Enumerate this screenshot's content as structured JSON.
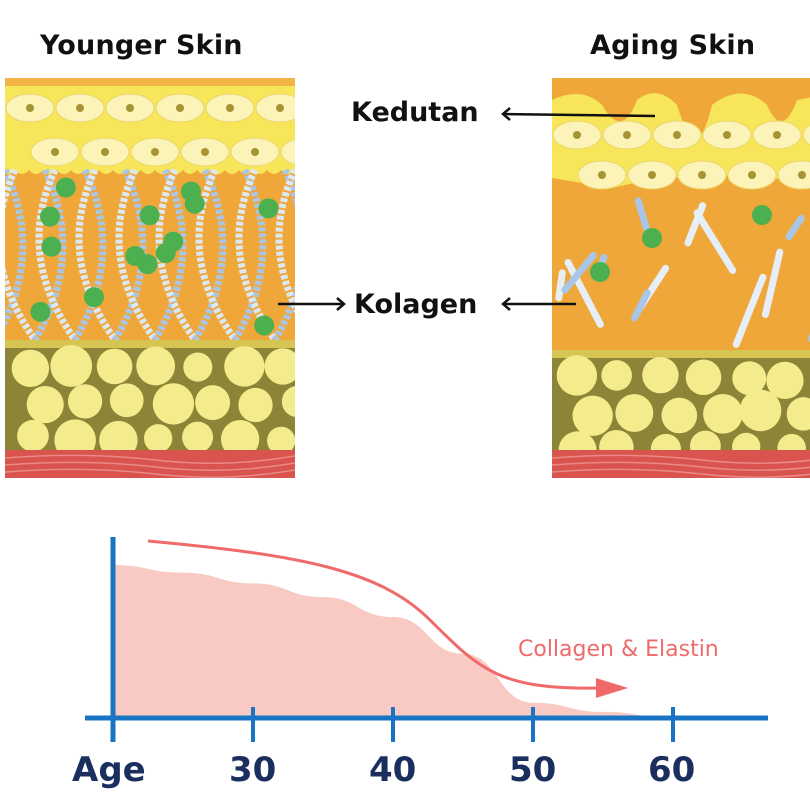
{
  "panels": {
    "younger_title": "Younger Skin",
    "aging_title": "Aging Skin"
  },
  "labels": {
    "wrinkles": "Kedutan",
    "collagen": "Kolagen"
  },
  "colors": {
    "axis": "#1a74c4",
    "fill": "#f9cac4",
    "arrow": "#f06a6a",
    "tick_text": "#1b2f5e",
    "epidermis": "#f7e65a",
    "dermis": "#f0a73a",
    "fat": "#8c8436",
    "muscle": "#d9534f"
  },
  "chart_data": {
    "type": "area",
    "title": "",
    "xlabel": "Age",
    "ylabel": "",
    "x_ticks": [
      "30",
      "40",
      "50",
      "60"
    ],
    "x": [
      20,
      25,
      30,
      35,
      40,
      45,
      50,
      55,
      60
    ],
    "series": [
      {
        "name": "Collagen & Elastin",
        "values": [
          100,
          95,
          88,
          79,
          66,
          42,
          10,
          4,
          0
        ]
      }
    ],
    "xlim": [
      20,
      65
    ],
    "ylim": [
      0,
      120
    ],
    "grid": false,
    "annotation": "Collagen & Elastin",
    "trend": "decreasing"
  }
}
